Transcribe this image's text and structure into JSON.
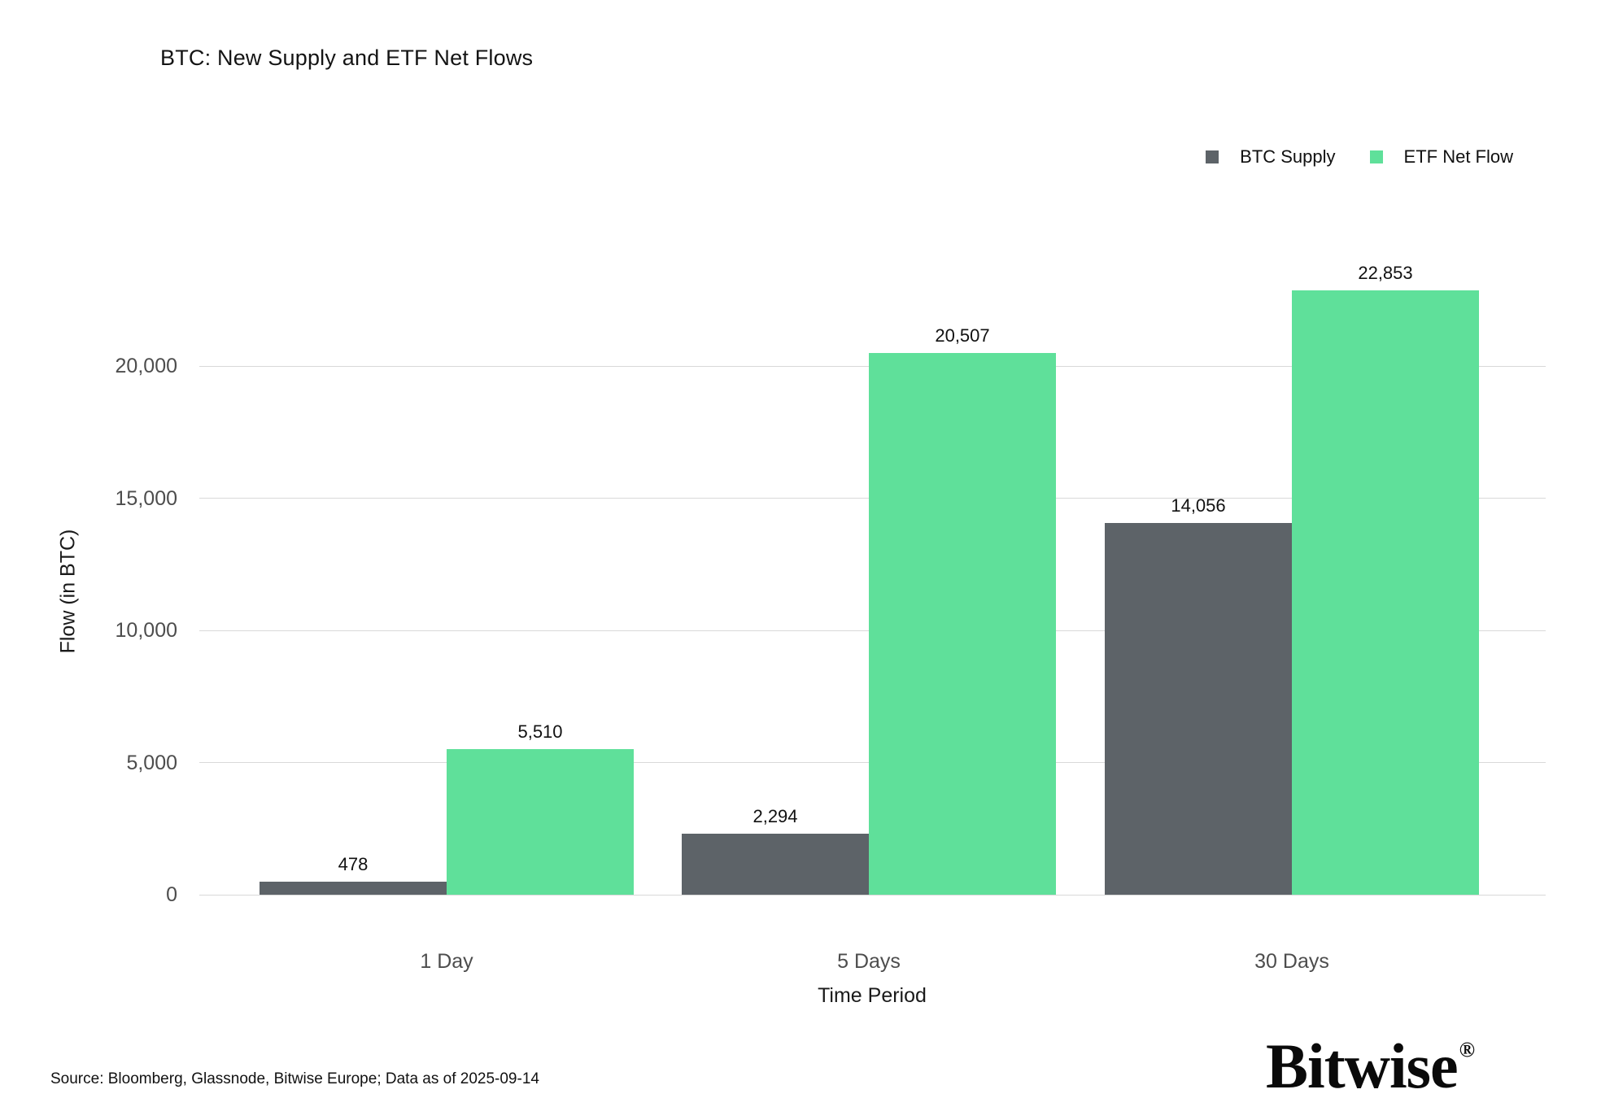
{
  "title": "BTC: New Supply and ETF Net Flows",
  "legend": {
    "items": [
      {
        "label": "BTC Supply",
        "color": "#5d6368"
      },
      {
        "label": "ETF Net Flow",
        "color": "#5fe09a"
      }
    ]
  },
  "chart_data": {
    "type": "bar",
    "title": "BTC: New Supply and ETF Net Flows",
    "categories": [
      "1 Day",
      "5 Days",
      "30 Days"
    ],
    "series": [
      {
        "name": "BTC Supply",
        "color": "#5d6368",
        "values": [
          478,
          2294,
          14056
        ],
        "value_labels": [
          "478",
          "2,294",
          "14,056"
        ]
      },
      {
        "name": "ETF Net Flow",
        "color": "#5fe09a",
        "values": [
          5510,
          20507,
          22853
        ],
        "value_labels": [
          "5,510",
          "20,507",
          "22,853"
        ]
      }
    ],
    "xlabel": "Time Period",
    "ylabel": "Flow (in BTC)",
    "ylim": [
      0,
      24000
    ],
    "yticks": [
      0,
      5000,
      10000,
      15000,
      20000
    ],
    "ytick_labels": [
      "0",
      "5,000",
      "10,000",
      "15,000",
      "20,000"
    ],
    "grid": true,
    "gridline_color": "#d9d9d9",
    "legend_position": "top-right",
    "background": "#ffffff"
  },
  "footer": {
    "source": "Source: Bloomberg, Glassnode, Bitwise Europe; Data as of 2025-09-14",
    "logo": "Bitwise",
    "logo_registered": "®"
  }
}
